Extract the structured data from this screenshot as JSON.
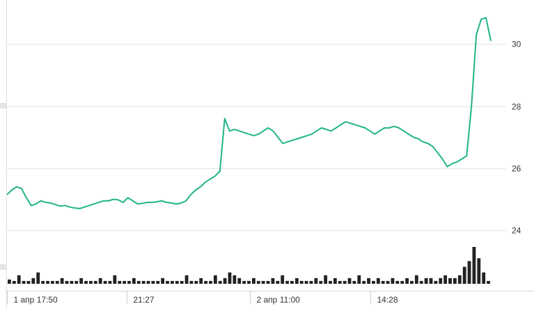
{
  "chart_data": {
    "type": "line",
    "title": "",
    "xlabel": "",
    "ylabel": "",
    "line_color": "#1fb58a",
    "volume_color": "#222222",
    "grid": true,
    "y_ticks": [
      24,
      26,
      28,
      30
    ],
    "y_tick_labels": [
      "24",
      "26",
      "28",
      "30"
    ],
    "ylim": [
      22.95,
      31.42
    ],
    "x_tick_labels": [
      "1 апр 17:50",
      "21:27",
      "2 апр 11:00",
      "14:28"
    ],
    "x_tick_fractions": [
      0.0,
      0.248,
      0.502,
      0.751
    ],
    "series": [
      {
        "values": [
          25.15,
          25.3,
          25.4,
          25.35,
          25.05,
          24.8,
          24.85,
          24.95,
          24.9,
          24.88,
          24.83,
          24.78,
          24.8,
          24.75,
          24.72,
          24.7,
          24.75,
          24.8,
          24.85,
          24.9,
          24.95,
          24.95,
          25.0,
          24.98,
          24.9,
          25.05,
          24.95,
          24.85,
          24.87,
          24.9,
          24.9,
          24.92,
          24.95,
          24.9,
          24.88,
          24.85,
          24.88,
          24.95,
          25.15,
          25.3,
          25.4,
          25.55,
          25.65,
          25.75,
          25.9,
          27.6,
          27.2,
          27.25,
          27.2,
          27.15,
          27.1,
          27.05,
          27.1,
          27.2,
          27.3,
          27.2,
          27.0,
          26.8,
          26.85,
          26.9,
          26.95,
          27.0,
          27.05,
          27.1,
          27.2,
          27.3,
          27.25,
          27.2,
          27.3,
          27.4,
          27.5,
          27.45,
          27.4,
          27.35,
          27.3,
          27.2,
          27.1,
          27.2,
          27.3,
          27.3,
          27.35,
          27.3,
          27.2,
          27.1,
          27.0,
          26.95,
          26.85,
          26.8,
          26.7,
          26.5,
          26.3,
          26.05,
          26.15,
          26.2,
          26.3,
          26.4,
          28.0,
          30.3,
          30.8,
          30.85,
          30.1
        ]
      }
    ],
    "volume": [
      1.5,
      1,
      3,
      1,
      1,
      2,
      4,
      1,
      1,
      1,
      1,
      2,
      1,
      1,
      1,
      2,
      1,
      1,
      1,
      2,
      1,
      1,
      3,
      1,
      1,
      1,
      2,
      1,
      1,
      1,
      1,
      1,
      2,
      1,
      1,
      1,
      1,
      3,
      1,
      1,
      2,
      1,
      1,
      3,
      1,
      2,
      4,
      3,
      2,
      1,
      1,
      2,
      1,
      1,
      1,
      2,
      1,
      3,
      1,
      1,
      2,
      1,
      1,
      1,
      2,
      1,
      3,
      1,
      2,
      1,
      1,
      2,
      1,
      3,
      1,
      2,
      1,
      2,
      1,
      1,
      2,
      1,
      1,
      2,
      1,
      3,
      1,
      2,
      2,
      1,
      2,
      3,
      2,
      2,
      3,
      6,
      8,
      13,
      9,
      4,
      1
    ]
  }
}
